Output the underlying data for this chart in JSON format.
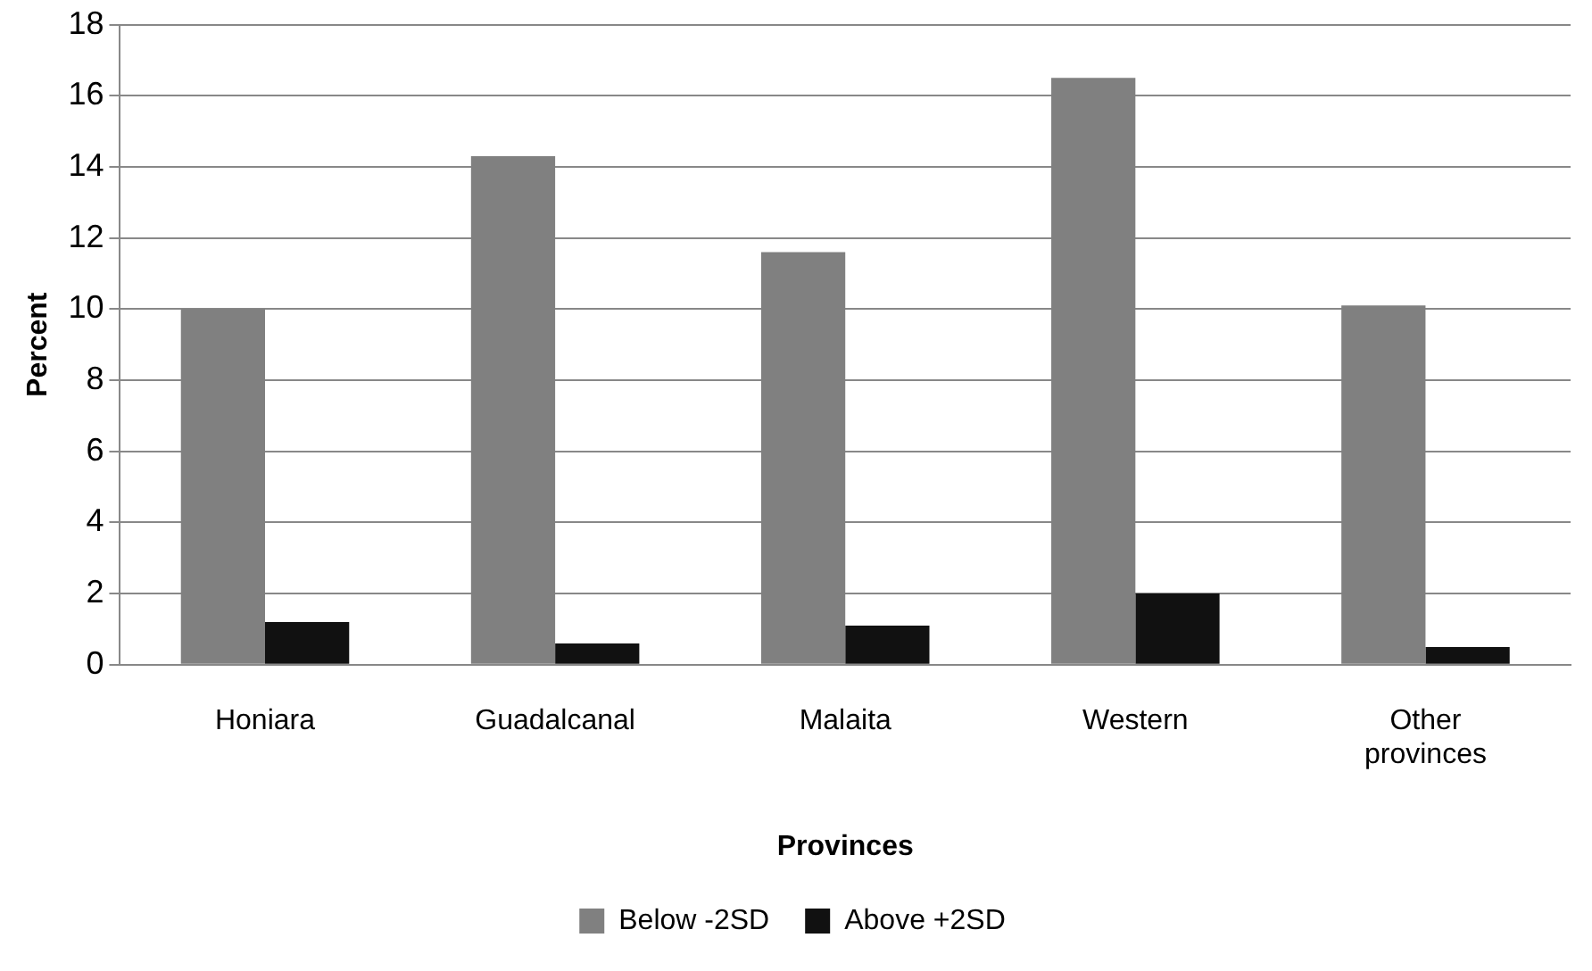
{
  "chart_data": {
    "type": "bar",
    "xlabel": "Provinces",
    "ylabel": "Percent",
    "categories": [
      "Honiara",
      "Guadalcanal",
      "Malaita",
      "Western",
      "Other provinces"
    ],
    "series": [
      {
        "name": "Below -2SD",
        "color": "#808080",
        "values": [
          10.0,
          14.3,
          11.6,
          16.5,
          10.1
        ]
      },
      {
        "name": "Above +2SD",
        "color": "#111111",
        "values": [
          1.2,
          0.6,
          1.1,
          2.0,
          0.5
        ]
      }
    ],
    "ylim": [
      0,
      18
    ],
    "yticks": [
      0,
      2,
      4,
      6,
      8,
      10,
      12,
      14,
      16,
      18
    ],
    "grid": "y",
    "legend": "bottom"
  }
}
